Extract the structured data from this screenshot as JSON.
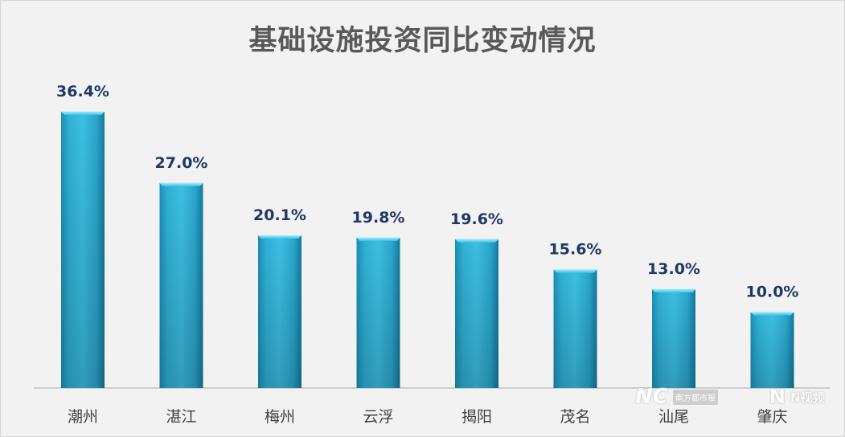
{
  "chart_data": {
    "type": "bar",
    "title": "基础设施投资同比变动情况",
    "categories": [
      "潮州",
      "湛江",
      "梅州",
      "云浮",
      "揭阳",
      "茂名",
      "汕尾",
      "肇庆"
    ],
    "values": [
      36.4,
      27.0,
      20.1,
      19.8,
      19.6,
      15.6,
      13.0,
      10.0
    ],
    "value_labels": [
      "36.4%",
      "27.0%",
      "20.1%",
      "19.8%",
      "19.6%",
      "15.6%",
      "13.0%",
      "10.0%"
    ],
    "xlabel": "",
    "ylabel": "",
    "ylim": [
      0,
      36.4
    ],
    "grid": false,
    "legend": "none",
    "bar_color": "#2aa8cf",
    "label_color": "#1f3864"
  },
  "watermark": {
    "brand_left": "NC",
    "brand_left_box": "南方都市报",
    "brand_right_mark": "N",
    "brand_right_text": "N视频"
  }
}
